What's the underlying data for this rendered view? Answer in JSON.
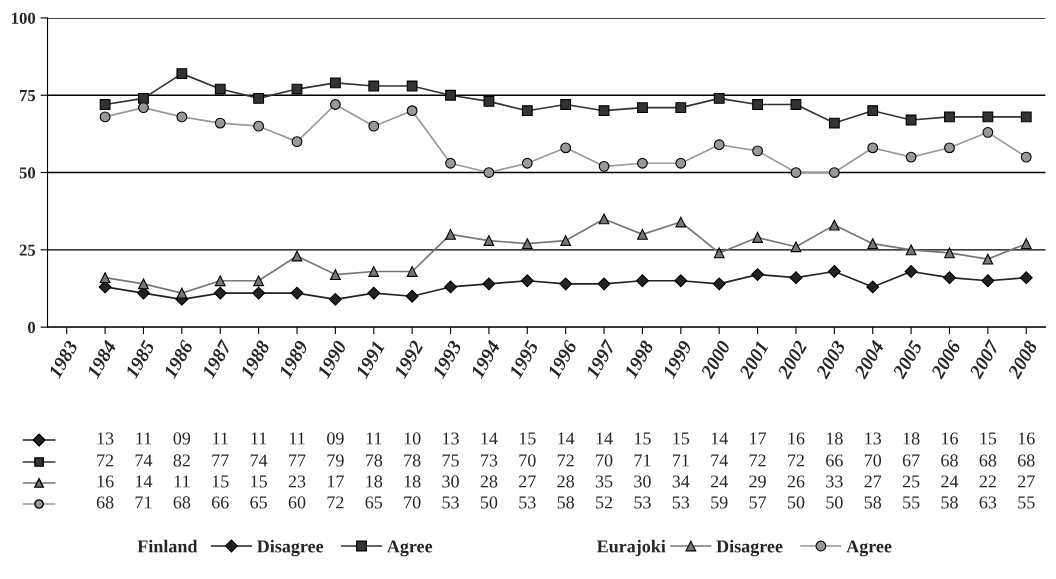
{
  "chart_data": {
    "type": "line",
    "categories": [
      "1983",
      "1984",
      "1985",
      "1986",
      "1987",
      "1988",
      "1989",
      "1990",
      "1991",
      "1992",
      "1993",
      "1994",
      "1995",
      "1996",
      "1997",
      "1998",
      "1999",
      "2000",
      "2001",
      "2002",
      "2003",
      "2004",
      "2005",
      "2006",
      "2007",
      "2008"
    ],
    "series": [
      {
        "name": "Disagree",
        "color": "#222222",
        "marker": "diamond",
        "values": [
          null,
          13,
          11,
          9,
          11,
          11,
          11,
          9,
          11,
          10,
          13,
          14,
          15,
          14,
          14,
          15,
          15,
          14,
          17,
          16,
          18,
          13,
          18,
          16,
          15,
          16
        ],
        "value_labels": [
          null,
          "13",
          "11",
          "09",
          "11",
          "11",
          "11",
          "09",
          "11",
          "10",
          "13",
          "14",
          "15",
          "14",
          "14",
          "15",
          "15",
          "14",
          "17",
          "16",
          "18",
          "13",
          "18",
          "16",
          "15",
          "16"
        ]
      },
      {
        "name": "Agree",
        "color": "#333333",
        "marker": "square",
        "values": [
          null,
          72,
          74,
          82,
          77,
          74,
          77,
          79,
          78,
          78,
          75,
          73,
          70,
          72,
          70,
          71,
          71,
          74,
          72,
          72,
          66,
          70,
          67,
          68,
          68,
          68
        ],
        "value_labels": [
          null,
          "72",
          "74",
          "82",
          "77",
          "74",
          "77",
          "79",
          "78",
          "78",
          "75",
          "73",
          "70",
          "72",
          "70",
          "71",
          "71",
          "74",
          "72",
          "72",
          "66",
          "70",
          "67",
          "68",
          "68",
          "68"
        ]
      },
      {
        "name": "Disagree",
        "color": "#777777",
        "marker": "triangle",
        "values": [
          null,
          16,
          14,
          11,
          15,
          15,
          23,
          17,
          18,
          18,
          30,
          28,
          27,
          28,
          35,
          30,
          34,
          24,
          29,
          26,
          33,
          27,
          25,
          24,
          22,
          27
        ],
        "value_labels": [
          null,
          "16",
          "14",
          "11",
          "15",
          "15",
          "23",
          "17",
          "18",
          "18",
          "30",
          "28",
          "27",
          "28",
          "35",
          "30",
          "34",
          "24",
          "29",
          "26",
          "33",
          "27",
          "25",
          "24",
          "22",
          "27"
        ]
      },
      {
        "name": "Agree",
        "color": "#999999",
        "marker": "circle",
        "values": [
          null,
          68,
          71,
          68,
          66,
          65,
          60,
          72,
          65,
          70,
          53,
          50,
          53,
          58,
          52,
          53,
          53,
          59,
          57,
          50,
          50,
          58,
          55,
          58,
          63,
          55
        ],
        "value_labels": [
          null,
          "68",
          "71",
          "68",
          "66",
          "65",
          "60",
          "72",
          "65",
          "70",
          "53",
          "50",
          "53",
          "58",
          "52",
          "53",
          "53",
          "59",
          "57",
          "50",
          "50",
          "58",
          "55",
          "58",
          "63",
          "55"
        ]
      }
    ],
    "annotations": [
      "Finland",
      "Eurajoki"
    ],
    "ylim": [
      0,
      100
    ],
    "yticks": [
      0,
      25,
      50,
      75,
      100
    ],
    "grid": "y",
    "legend": "bottom",
    "line_style": "solid"
  }
}
